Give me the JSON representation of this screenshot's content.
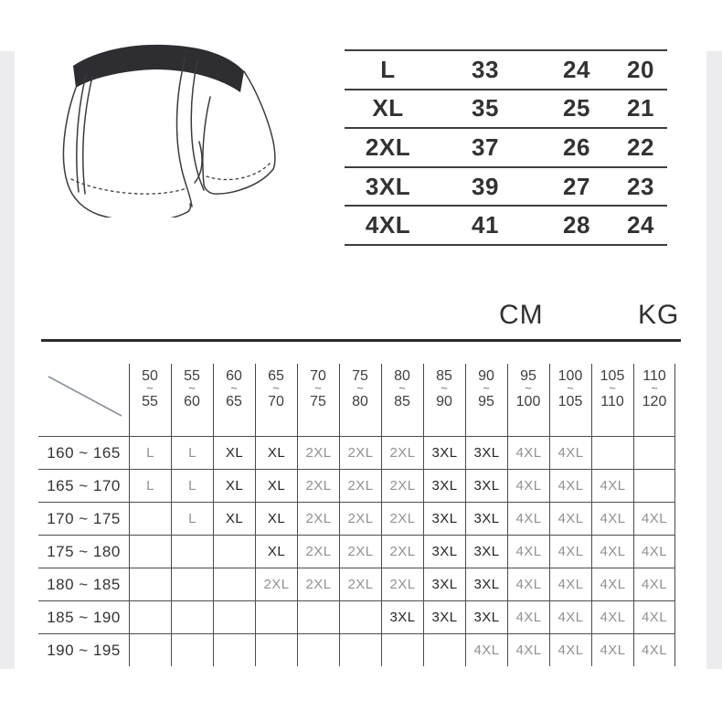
{
  "units": {
    "cm": "CM",
    "kg": "KG"
  },
  "size_table": {
    "rows": [
      {
        "size": "L",
        "values": [
          "33",
          "24",
          "20"
        ]
      },
      {
        "size": "XL",
        "values": [
          "35",
          "25",
          "21"
        ]
      },
      {
        "size": "2XL",
        "values": [
          "37",
          "26",
          "22"
        ]
      },
      {
        "size": "3XL",
        "values": [
          "39",
          "27",
          "23"
        ]
      },
      {
        "size": "4XL",
        "values": [
          "41",
          "28",
          "24"
        ]
      }
    ]
  },
  "matrix": {
    "tilde": "~",
    "weight_columns": [
      {
        "min": "50",
        "max": "55"
      },
      {
        "min": "55",
        "max": "60"
      },
      {
        "min": "60",
        "max": "65"
      },
      {
        "min": "65",
        "max": "70"
      },
      {
        "min": "70",
        "max": "75"
      },
      {
        "min": "75",
        "max": "80"
      },
      {
        "min": "80",
        "max": "85"
      },
      {
        "min": "85",
        "max": "90"
      },
      {
        "min": "90",
        "max": "95"
      },
      {
        "min": "95",
        "max": "100"
      },
      {
        "min": "100",
        "max": "105"
      },
      {
        "min": "105",
        "max": "110"
      },
      {
        "min": "110",
        "max": "120"
      }
    ],
    "rows": [
      {
        "height": "160 ~ 165",
        "cells": [
          "L",
          "L",
          "XL",
          "XL",
          "2XL",
          "2XL",
          "2XL",
          "3XL",
          "3XL",
          "4XL",
          "4XL",
          "",
          ""
        ]
      },
      {
        "height": "165 ~ 170",
        "cells": [
          "L",
          "L",
          "XL",
          "XL",
          "2XL",
          "2XL",
          "2XL",
          "3XL",
          "3XL",
          "4XL",
          "4XL",
          "4XL",
          ""
        ]
      },
      {
        "height": "170 ~ 175",
        "cells": [
          "",
          "L",
          "XL",
          "XL",
          "2XL",
          "2XL",
          "2XL",
          "3XL",
          "3XL",
          "4XL",
          "4XL",
          "4XL",
          "4XL"
        ]
      },
      {
        "height": "175 ~ 180",
        "cells": [
          "",
          "",
          "",
          "XL",
          "2XL",
          "2XL",
          "2XL",
          "3XL",
          "3XL",
          "4XL",
          "4XL",
          "4XL",
          "4XL"
        ]
      },
      {
        "height": "180 ~ 185",
        "cells": [
          "",
          "",
          "",
          "2XL",
          "2XL",
          "2XL",
          "2XL",
          "3XL",
          "3XL",
          "4XL",
          "4XL",
          "4XL",
          "4XL"
        ]
      },
      {
        "height": "185 ~ 190",
        "cells": [
          "",
          "",
          "",
          "",
          "",
          "",
          "3XL",
          "3XL",
          "3XL",
          "4XL",
          "4XL",
          "4XL",
          "4XL"
        ]
      },
      {
        "height": "190 ~ 195",
        "cells": [
          "",
          "",
          "",
          "",
          "",
          "",
          "",
          "",
          "4XL",
          "4XL",
          "4XL",
          "4XL",
          "4XL"
        ]
      }
    ],
    "dark_sizes": [
      "XL",
      "3XL"
    ],
    "colors": {
      "dark_text": "#232527",
      "gray_text": "#8f9193",
      "grid_line": "#4c4c4c"
    }
  }
}
